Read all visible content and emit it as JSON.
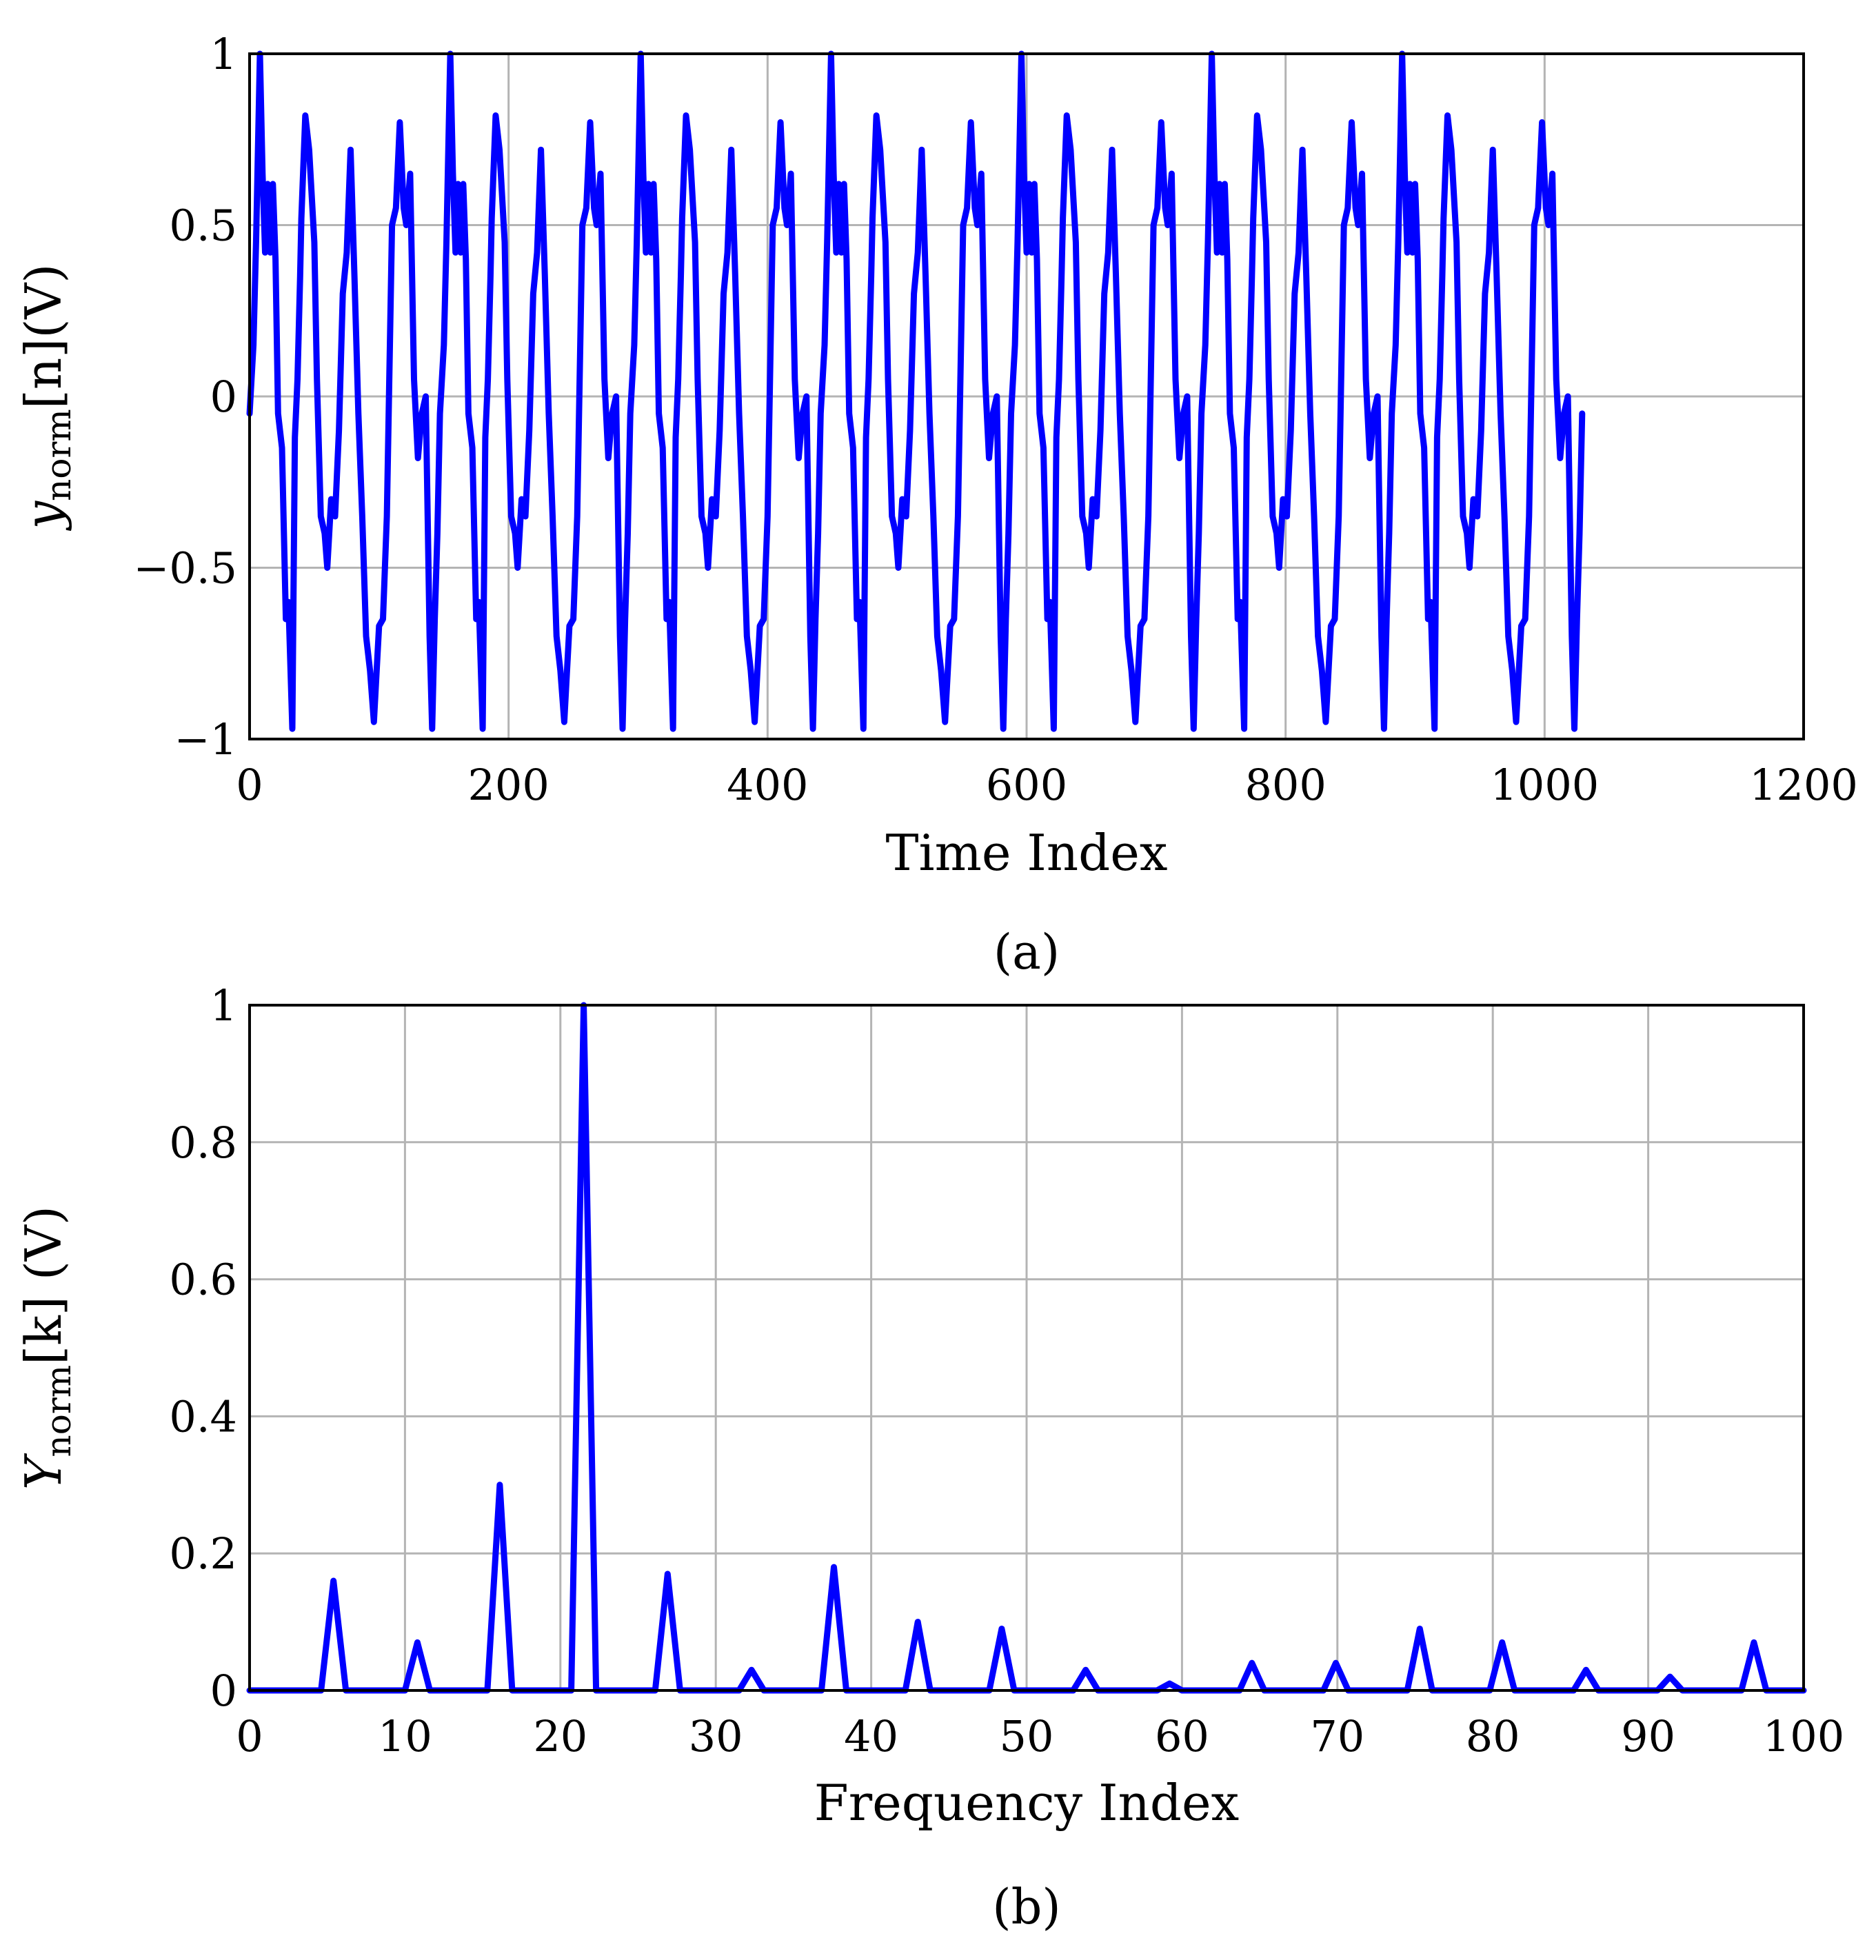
{
  "colors": {
    "series": "#0000ff",
    "grid": "#b4b4b4",
    "axes": "#000000"
  },
  "chart_data": [
    {
      "type": "line",
      "caption": "(a)",
      "xlabel": "Time Index",
      "ylabel_main": "y",
      "ylabel_sub": "norm",
      "ylabel_rest": "[n](V)",
      "xlim": [
        0,
        1200
      ],
      "ylim": [
        -1,
        1
      ],
      "xticks": [
        0,
        200,
        400,
        600,
        800,
        1000,
        1200
      ],
      "yticks": [
        -1,
        -0.5,
        0,
        0.5,
        1
      ],
      "xtick_labels": [
        "0",
        "200",
        "400",
        "600",
        "800",
        "1000",
        "1200"
      ],
      "ytick_labels": [
        "−1",
        "−0.5",
        "0",
        "0.5",
        "1"
      ],
      "grid": true,
      "period": 147,
      "x_end": 1030,
      "x": [
        0,
        3,
        5,
        8,
        10,
        12,
        14,
        16,
        18,
        20,
        22,
        25,
        28,
        30,
        33,
        35,
        37,
        39,
        40,
        43,
        46,
        50,
        52,
        55,
        58,
        60,
        63,
        66,
        69,
        72,
        75,
        78,
        81,
        84,
        87,
        90,
        93,
        96,
        100,
        103,
        106,
        110,
        113,
        116,
        119,
        121,
        124,
        127,
        130,
        133,
        136,
        139,
        141,
        143,
        145
      ],
      "y": [
        -0.05,
        0.15,
        0.45,
        1.0,
        0.65,
        0.42,
        0.62,
        0.42,
        0.62,
        0.4,
        -0.05,
        -0.15,
        -0.65,
        -0.6,
        -0.97,
        -0.12,
        0.05,
        0.35,
        0.52,
        0.82,
        0.72,
        0.45,
        0.05,
        -0.35,
        -0.4,
        -0.5,
        -0.3,
        -0.35,
        -0.1,
        0.3,
        0.42,
        0.72,
        0.35,
        -0.05,
        -0.35,
        -0.7,
        -0.8,
        -0.95,
        -0.67,
        -0.65,
        -0.35,
        0.5,
        0.55,
        0.8,
        0.55,
        0.5,
        0.65,
        0.05,
        -0.18,
        -0.05,
        0.0,
        -0.7,
        -0.97,
        -0.65,
        -0.4
      ],
      "series_name": "y_norm[n]"
    },
    {
      "type": "line",
      "caption": "(b)",
      "xlabel": "Frequency Index",
      "ylabel_main": "Y",
      "ylabel_sub": "norm",
      "ylabel_rest": "[k] (V)",
      "xlim": [
        0,
        100
      ],
      "ylim": [
        0,
        1
      ],
      "xticks": [
        0,
        10,
        20,
        30,
        40,
        50,
        60,
        70,
        80,
        90,
        100
      ],
      "yticks": [
        0,
        0.2,
        0.4,
        0.6,
        0.8,
        1
      ],
      "xtick_labels": [
        "0",
        "10",
        "20",
        "30",
        "40",
        "50",
        "60",
        "70",
        "80",
        "90",
        "100"
      ],
      "ytick_labels": [
        "0",
        "0.2",
        "0.4",
        "0.6",
        "0.8",
        "1"
      ],
      "grid": true,
      "x_end": 100,
      "peak_halfwidth": 0.8,
      "peaks": [
        {
          "k": 5.4,
          "value": 0.16
        },
        {
          "k": 10.8,
          "value": 0.07
        },
        {
          "k": 16.1,
          "value": 0.3
        },
        {
          "k": 21.5,
          "value": 1.0
        },
        {
          "k": 26.9,
          "value": 0.17
        },
        {
          "k": 32.3,
          "value": 0.03
        },
        {
          "k": 37.6,
          "value": 0.18
        },
        {
          "k": 43.0,
          "value": 0.1
        },
        {
          "k": 48.4,
          "value": 0.09
        },
        {
          "k": 53.8,
          "value": 0.03
        },
        {
          "k": 59.2,
          "value": 0.01
        },
        {
          "k": 64.5,
          "value": 0.04
        },
        {
          "k": 69.9,
          "value": 0.04
        },
        {
          "k": 75.3,
          "value": 0.09
        },
        {
          "k": 80.6,
          "value": 0.07
        },
        {
          "k": 86.0,
          "value": 0.03
        },
        {
          "k": 91.4,
          "value": 0.02
        },
        {
          "k": 96.8,
          "value": 0.07
        }
      ],
      "series_name": "Y_norm[k]"
    }
  ]
}
